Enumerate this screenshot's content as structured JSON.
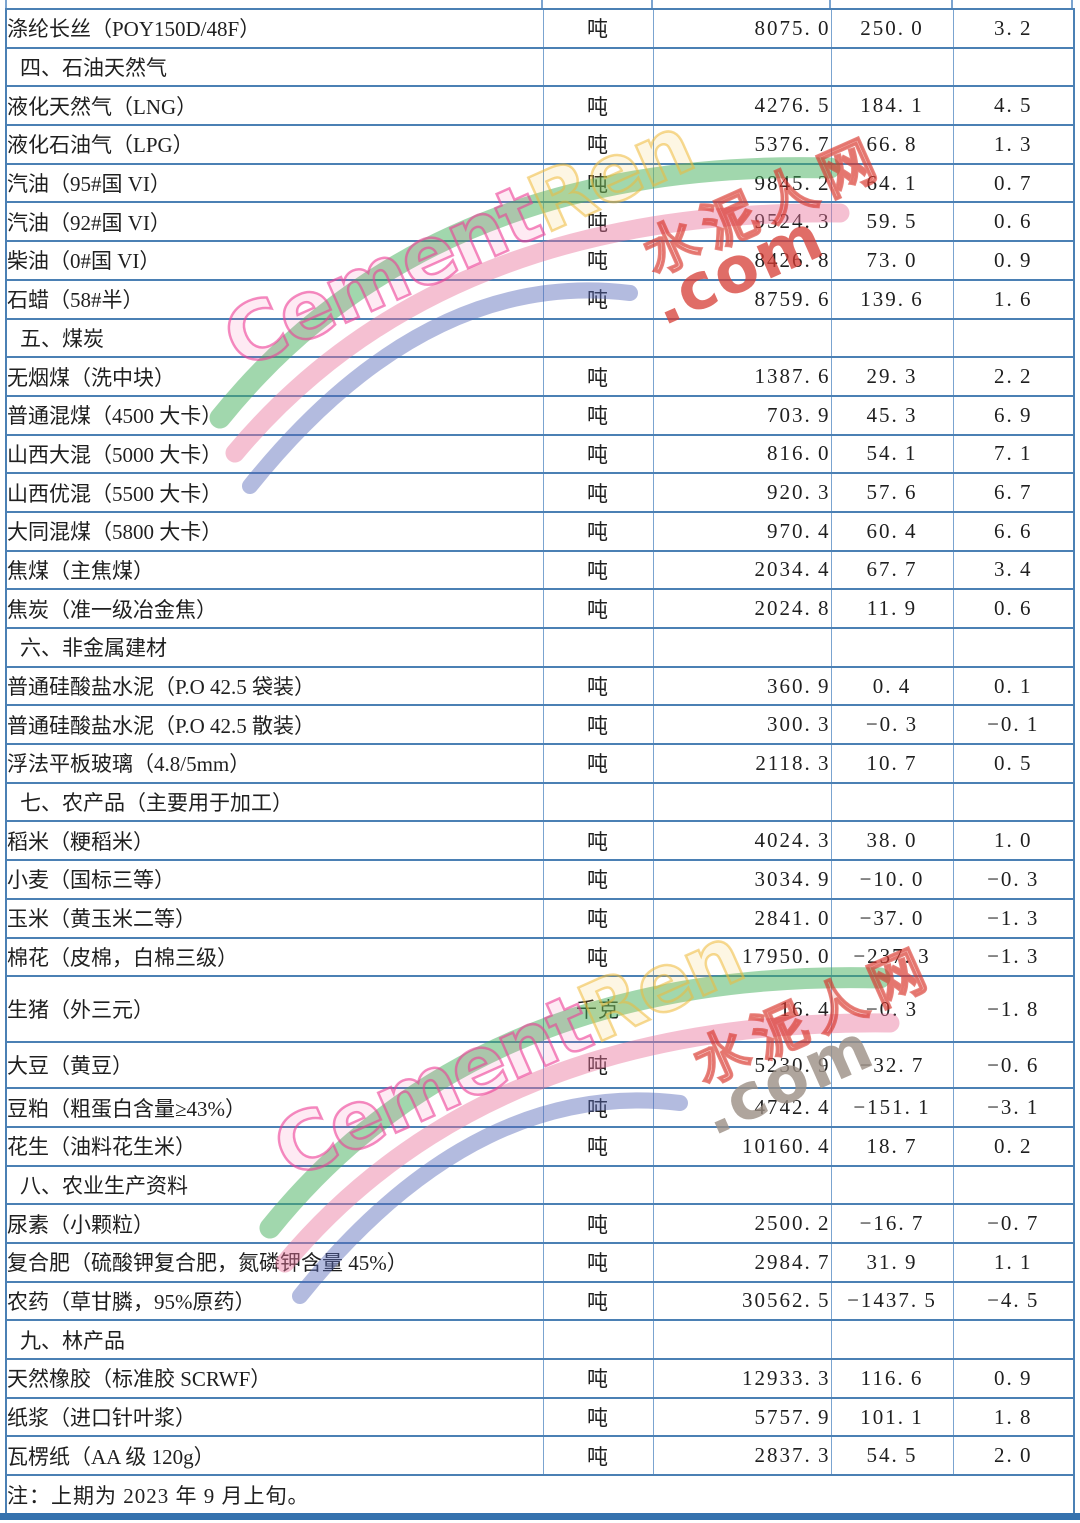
{
  "watermark": {
    "en_part1": "Cement",
    "en_part2": "Ren",
    "domain": ".com",
    "site_cn": "水泥人网"
  },
  "note": "注：上期为 2023 年 9 月上旬。",
  "table": {
    "rows": [
      {
        "kind": "item",
        "name": "涤纶长丝（POY150D/48F）",
        "unit": "吨",
        "price": "8075.0",
        "change": "250.0",
        "pct": "3.2"
      },
      {
        "kind": "section",
        "name": "四、石油天然气"
      },
      {
        "kind": "item",
        "name": "液化天然气（LNG）",
        "unit": "吨",
        "price": "4276.5",
        "change": "184.1",
        "pct": "4.5"
      },
      {
        "kind": "item",
        "name": "液化石油气（LPG）",
        "unit": "吨",
        "price": "5376.7",
        "change": "66.8",
        "pct": "1.3"
      },
      {
        "kind": "item",
        "name": "汽油（95#国 VI）",
        "unit": "吨",
        "price": "9845.2",
        "change": "64.1",
        "pct": "0.7"
      },
      {
        "kind": "item",
        "name": "汽油（92#国 VI）",
        "unit": "吨",
        "price": "9524.3",
        "change": "59.5",
        "pct": "0.6"
      },
      {
        "kind": "item",
        "name": "柴油（0#国 VI）",
        "unit": "吨",
        "price": "8426.8",
        "change": "73.0",
        "pct": "0.9"
      },
      {
        "kind": "item",
        "name": "石蜡（58#半）",
        "unit": "吨",
        "price": "8759.6",
        "change": "139.6",
        "pct": "1.6"
      },
      {
        "kind": "section",
        "name": "五、煤炭"
      },
      {
        "kind": "item",
        "name": "无烟煤（洗中块）",
        "unit": "吨",
        "price": "1387.6",
        "change": "29.3",
        "pct": "2.2"
      },
      {
        "kind": "item",
        "name": "普通混煤（4500 大卡）",
        "unit": "吨",
        "price": "703.9",
        "change": "45.3",
        "pct": "6.9"
      },
      {
        "kind": "item",
        "name": "山西大混（5000 大卡）",
        "unit": "吨",
        "price": "816.0",
        "change": "54.1",
        "pct": "7.1"
      },
      {
        "kind": "item",
        "name": "山西优混（5500 大卡）",
        "unit": "吨",
        "price": "920.3",
        "change": "57.6",
        "pct": "6.7"
      },
      {
        "kind": "item",
        "name": "大同混煤（5800 大卡）",
        "unit": "吨",
        "price": "970.4",
        "change": "60.4",
        "pct": "6.6"
      },
      {
        "kind": "item",
        "name": "焦煤（主焦煤）",
        "unit": "吨",
        "price": "2034.4",
        "change": "67.7",
        "pct": "3.4"
      },
      {
        "kind": "item",
        "name": "焦炭（准一级冶金焦）",
        "unit": "吨",
        "price": "2024.8",
        "change": "11.9",
        "pct": "0.6"
      },
      {
        "kind": "section",
        "name": "六、非金属建材"
      },
      {
        "kind": "item",
        "name": "普通硅酸盐水泥（P.O 42.5 袋装）",
        "unit": "吨",
        "price": "360.9",
        "change": "0.4",
        "pct": "0.1"
      },
      {
        "kind": "item",
        "name": "普通硅酸盐水泥（P.O 42.5 散装）",
        "unit": "吨",
        "price": "300.3",
        "change": "-0.3",
        "pct": "-0.1"
      },
      {
        "kind": "item",
        "name": "浮法平板玻璃（4.8/5mm）",
        "unit": "吨",
        "price": "2118.3",
        "change": "10.7",
        "pct": "0.5"
      },
      {
        "kind": "section",
        "name": "七、农产品（主要用于加工）"
      },
      {
        "kind": "item",
        "name": "稻米（粳稻米）",
        "unit": "吨",
        "price": "4024.3",
        "change": "38.0",
        "pct": "1.0"
      },
      {
        "kind": "item",
        "name": "小麦（国标三等）",
        "unit": "吨",
        "price": "3034.9",
        "change": "-10.0",
        "pct": "-0.3"
      },
      {
        "kind": "item",
        "name": "玉米（黄玉米二等）",
        "unit": "吨",
        "price": "2841.0",
        "change": "-37.0",
        "pct": "-1.3"
      },
      {
        "kind": "item",
        "name": "棉花（皮棉，白棉三级）",
        "unit": "吨",
        "price": "17950.0",
        "change": "-237.3",
        "pct": "-1.3"
      },
      {
        "kind": "item",
        "name": "生猪（外三元）",
        "unit": "千克",
        "price": "16.4",
        "change": "-0.3",
        "pct": "-1.8",
        "size": "tall"
      },
      {
        "kind": "item",
        "name": "大豆（黄豆）",
        "unit": "吨",
        "price": "5230.9",
        "change": "-32.7",
        "pct": "-0.6",
        "size": "med"
      },
      {
        "kind": "item",
        "name": "豆粕（粗蛋白含量≥43%）",
        "unit": "吨",
        "price": "4742.4",
        "change": "-151.1",
        "pct": "-3.1"
      },
      {
        "kind": "item",
        "name": "花生（油料花生米）",
        "unit": "吨",
        "price": "10160.4",
        "change": "18.7",
        "pct": "0.2"
      },
      {
        "kind": "section",
        "name": "八、农业生产资料"
      },
      {
        "kind": "item",
        "name": "尿素（小颗粒）",
        "unit": "吨",
        "price": "2500.2",
        "change": "-16.7",
        "pct": "-0.7"
      },
      {
        "kind": "item",
        "name": "复合肥（硫酸钾复合肥，氮磷钾含量 45%）",
        "unit": "吨",
        "price": "2984.7",
        "change": "31.9",
        "pct": "1.1"
      },
      {
        "kind": "item",
        "name": "农药（草甘膦，95%原药）",
        "unit": "吨",
        "price": "30562.5",
        "change": "-1437.5",
        "pct": "-4.5"
      },
      {
        "kind": "section",
        "name": "九、林产品"
      },
      {
        "kind": "item",
        "name": "天然橡胶（标准胶 SCRWF）",
        "unit": "吨",
        "price": "12933.3",
        "change": "116.6",
        "pct": "0.9"
      },
      {
        "kind": "item",
        "name": "纸浆（进口针叶浆）",
        "unit": "吨",
        "price": "5757.9",
        "change": "101.1",
        "pct": "1.8"
      },
      {
        "kind": "item",
        "name": "瓦楞纸（AA 级 120g）",
        "unit": "吨",
        "price": "2837.3",
        "change": "54.5",
        "pct": "2.0"
      }
    ]
  },
  "colors": {
    "grid_horizontal": "#4b80b4",
    "grid_vertical": "#7ba4d0",
    "bottom_rule": "#3572ae",
    "watermark_pink": "#ec3e96",
    "watermark_red": "#d53c34",
    "watermark_green": "#44b05b",
    "watermark_blue": "#5668b8",
    "watermark_yellow": "#eeba3a"
  }
}
